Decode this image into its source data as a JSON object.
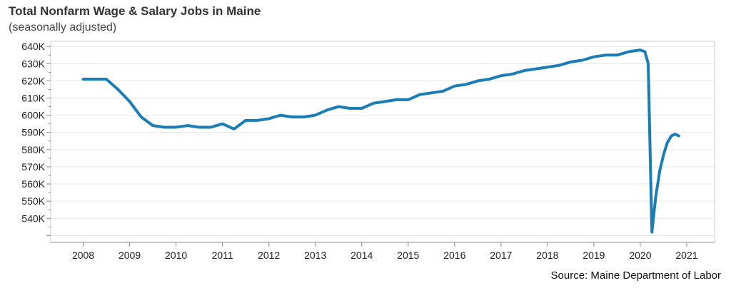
{
  "chart_data": {
    "type": "line",
    "title": "Total Nonfarm Wage & Salary Jobs in Maine",
    "subtitle": "(seasonally adjusted)",
    "source": "Source: Maine Department of Labor",
    "xlabel": "",
    "ylabel": "",
    "x_ticks": [
      "2008",
      "2009",
      "2010",
      "2011",
      "2012",
      "2013",
      "2014",
      "2015",
      "2016",
      "2017",
      "2018",
      "2019",
      "2020",
      "2021"
    ],
    "y_ticks": [
      "540K",
      "550K",
      "560K",
      "570K",
      "580K",
      "590K",
      "600K",
      "610K",
      "620K",
      "630K",
      "640K"
    ],
    "xlim": [
      2007.3,
      2021.6
    ],
    "ylim": [
      526,
      643
    ],
    "grid": true,
    "line_color": "#1a7db6",
    "series": [
      {
        "x": [
          2008.0,
          2008.25,
          2008.5,
          2008.75,
          2009.0,
          2009.25,
          2009.5,
          2009.75,
          2010.0,
          2010.25,
          2010.5,
          2010.75,
          2011.0,
          2011.25,
          2011.5,
          2011.75,
          2012.0,
          2012.25,
          2012.5,
          2012.75,
          2013.0,
          2013.25,
          2013.5,
          2013.75,
          2014.0,
          2014.25,
          2014.5,
          2014.75,
          2015.0,
          2015.25,
          2015.5,
          2015.75,
          2016.0,
          2016.25,
          2016.5,
          2016.75,
          2017.0,
          2017.25,
          2017.5,
          2017.75,
          2018.0,
          2018.25,
          2018.5,
          2018.75,
          2019.0,
          2019.25,
          2019.5,
          2019.75,
          2020.0,
          2020.1,
          2020.17,
          2020.25,
          2020.33,
          2020.42,
          2020.5,
          2020.58,
          2020.67,
          2020.75,
          2020.83
        ],
        "values": [
          621,
          621,
          621,
          615,
          608,
          599,
          594,
          593,
          593,
          594,
          593,
          593,
          595,
          592,
          597,
          597,
          598,
          600,
          599,
          599,
          600,
          603,
          605,
          604,
          604,
          607,
          608,
          609,
          609,
          612,
          613,
          614,
          617,
          618,
          620,
          621,
          623,
          624,
          626,
          627,
          628,
          629,
          631,
          632,
          634,
          635,
          635,
          637,
          638,
          637,
          630,
          532,
          552,
          568,
          577,
          584,
          588,
          589,
          588
        ]
      }
    ]
  }
}
